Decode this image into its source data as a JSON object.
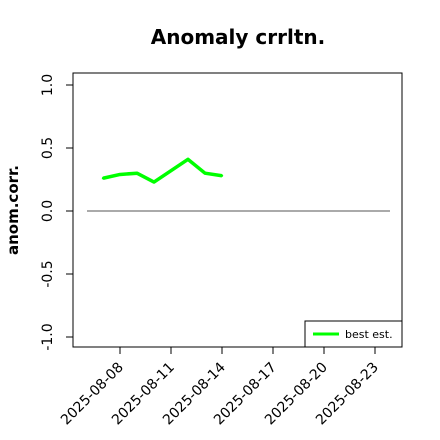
{
  "chart_data": {
    "type": "line",
    "title": "Anomaly crrltn.",
    "ylabel": "anom.corr.",
    "xlabel": "",
    "ylim": [
      -1.05,
      1.05
    ],
    "yticks": [
      -1.0,
      -0.5,
      0.0,
      0.5,
      1.0
    ],
    "ytick_labels": [
      "-1.0",
      "-0.5",
      "0.0",
      "0.5",
      "1.0"
    ],
    "xticks": [
      "2025-08-08",
      "2025-08-11",
      "2025-08-14",
      "2025-08-17",
      "2025-08-20",
      "2025-08-23"
    ],
    "xtick_colors": [
      "#000000",
      "#000000",
      "#228B22",
      "#000000",
      "#000000",
      "#000000"
    ],
    "reference_line": 0.0,
    "series": [
      {
        "name": "best est.",
        "color": "#00ff00",
        "x": [
          "2025-08-07",
          "2025-08-08",
          "2025-08-09",
          "2025-08-10",
          "2025-08-11",
          "2025-08-12",
          "2025-08-13",
          "2025-08-14"
        ],
        "values": [
          0.26,
          0.29,
          0.3,
          0.23,
          0.32,
          0.41,
          0.3,
          0.28
        ]
      }
    ],
    "legend_position": "bottom-right",
    "grid": false
  }
}
